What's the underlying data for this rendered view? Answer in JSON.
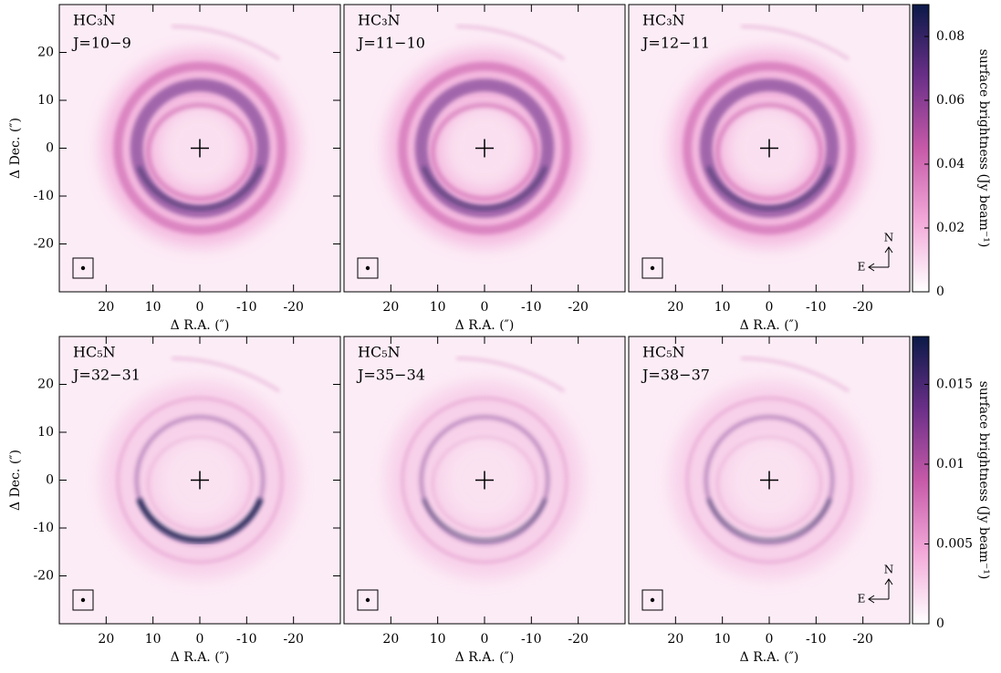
{
  "chart_data": [
    {
      "type": "image",
      "lines": [
        "HC₃N",
        "J=10−9"
      ],
      "xlim": [
        30,
        -30
      ],
      "ylim": [
        -30,
        30
      ],
      "xticks": [
        20,
        10,
        0,
        -10,
        -20
      ],
      "yticks": [
        -20,
        -10,
        0,
        10,
        20
      ],
      "xlabel": "Δ R.A. (″)",
      "ylabel": "Δ Dec. (″)"
    },
    {
      "type": "image",
      "lines": [
        "HC₃N",
        "J=11−10"
      ],
      "xlim": [
        30,
        -30
      ],
      "ylim": [
        -30,
        30
      ],
      "xticks": [
        20,
        10,
        0,
        -10,
        -20
      ],
      "xlabel": "Δ R.A. (″)"
    },
    {
      "type": "image",
      "lines": [
        "HC₃N",
        "J=12−11"
      ],
      "xlim": [
        30,
        -30
      ],
      "ylim": [
        -30,
        30
      ],
      "xticks": [
        20,
        10,
        0,
        -10,
        -20
      ],
      "xlabel": "Δ R.A. (″)",
      "compass": {
        "north": "N",
        "east": "E"
      },
      "colorbar": {
        "label": "surface brightness (Jy beam⁻¹)",
        "lim": [
          0,
          0.09
        ],
        "ticks": [
          0,
          0.02,
          0.04,
          0.06,
          0.08
        ],
        "colors": [
          "#ffffff",
          "#f2a8d8",
          "#c65aa8",
          "#6a2f88",
          "#0b1a48"
        ]
      }
    },
    {
      "type": "image",
      "lines": [
        "HC₅N",
        "J=32−31"
      ],
      "xlim": [
        30,
        -30
      ],
      "ylim": [
        -30,
        30
      ],
      "xticks": [
        20,
        10,
        0,
        -10,
        -20
      ],
      "yticks": [
        -20,
        -10,
        0,
        10,
        20
      ],
      "xlabel": "Δ R.A. (″)",
      "ylabel": "Δ Dec. (″)"
    },
    {
      "type": "image",
      "lines": [
        "HC₅N",
        "J=35−34"
      ],
      "xlim": [
        30,
        -30
      ],
      "ylim": [
        -30,
        30
      ],
      "xticks": [
        20,
        10,
        0,
        -10,
        -20
      ],
      "xlabel": "Δ R.A. (″)"
    },
    {
      "type": "image",
      "lines": [
        "HC₅N",
        "J=38−37"
      ],
      "xlim": [
        30,
        -30
      ],
      "ylim": [
        -30,
        30
      ],
      "xticks": [
        20,
        10,
        0,
        -10,
        -20
      ],
      "xlabel": "Δ R.A. (″)",
      "compass": {
        "north": "N",
        "east": "E"
      },
      "colorbar": {
        "label": "surface brightness (Jy beam⁻¹)",
        "lim": [
          0,
          0.018
        ],
        "ticks": [
          0,
          0.005,
          0.01,
          0.015
        ],
        "colors": [
          "#ffffff",
          "#f2a8d8",
          "#c65aa8",
          "#6a2f88",
          "#0b1a48"
        ]
      }
    }
  ]
}
